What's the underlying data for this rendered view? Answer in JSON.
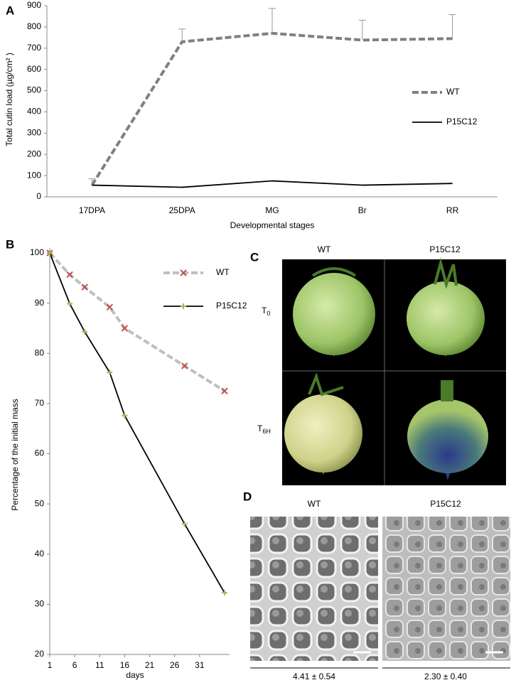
{
  "chart_data": [
    {
      "type": "line",
      "panel_label": "A",
      "x_label": "Developmental stages",
      "y_label": "Total cutin load (µg/cm² )",
      "categories": [
        "17DPA",
        "25DPA",
        "MG",
        "Br",
        "RR"
      ],
      "ylim": [
        0,
        900
      ],
      "yticks": [
        0,
        100,
        200,
        300,
        400,
        500,
        600,
        700,
        800,
        900
      ],
      "legend": "right",
      "series": [
        {
          "name": "WT",
          "color": "#808080",
          "dash": true,
          "values": [
            55,
            730,
            770,
            738,
            745
          ],
          "errors": [
            30,
            60,
            117,
            94,
            113
          ]
        },
        {
          "name": "P15C12",
          "color": "#000000",
          "dash": false,
          "values": [
            55,
            45,
            75,
            55,
            63
          ]
        }
      ]
    },
    {
      "type": "scatter-line",
      "panel_label": "B",
      "x_label": "days",
      "y_label": "Percentage of the initial mass",
      "x": [
        1,
        5,
        8,
        13,
        16,
        28,
        36
      ],
      "xlim": [
        1,
        37
      ],
      "xticks": [
        1,
        6,
        11,
        16,
        21,
        26,
        31
      ],
      "ylim": [
        20,
        101
      ],
      "yticks": [
        20,
        30,
        40,
        50,
        60,
        70,
        80,
        90,
        100
      ],
      "legend": "upper right",
      "series": [
        {
          "name": "WT",
          "color": "#bfbfbf",
          "dash": true,
          "marker": "x",
          "marker_color": "#c0504d",
          "values": [
            100,
            95.7,
            93.2,
            89.2,
            85,
            77.5,
            72.5
          ]
        },
        {
          "name": "P15C12",
          "color": "#000000",
          "dash": false,
          "marker": "+",
          "marker_color": "#9bbb59",
          "values": [
            100,
            89.9,
            84.3,
            76.2,
            67.6,
            46,
            32.3
          ]
        }
      ]
    }
  ],
  "panel_c": {
    "label": "C",
    "columns": [
      "WT",
      "P15C12"
    ],
    "rows": [
      {
        "main": "T",
        "sub": "0"
      },
      {
        "main": "T",
        "sub": "6H"
      }
    ]
  },
  "panel_d": {
    "label": "D",
    "columns": [
      "WT",
      "P15C12"
    ],
    "values": [
      "4.41 ± 0.54",
      "2.30 ± 0.40"
    ]
  }
}
